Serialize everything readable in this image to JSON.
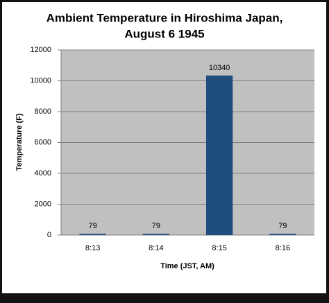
{
  "chart_data": {
    "type": "bar",
    "title": [
      "Ambient Temperature in Hiroshima Japan,",
      "August 6 1945"
    ],
    "x_label": "Time (JST, AM)",
    "y_label": "Temperature (F)",
    "categories": [
      "8:13",
      "8:14",
      "8:15",
      "8:16"
    ],
    "values": [
      79,
      79,
      10340,
      79
    ],
    "color": "#1f4e7e",
    "ylim": [
      0,
      12000
    ],
    "yticks": [
      0,
      2000,
      4000,
      6000,
      8000,
      10000,
      12000
    ],
    "grid": true,
    "data_labels": true
  }
}
